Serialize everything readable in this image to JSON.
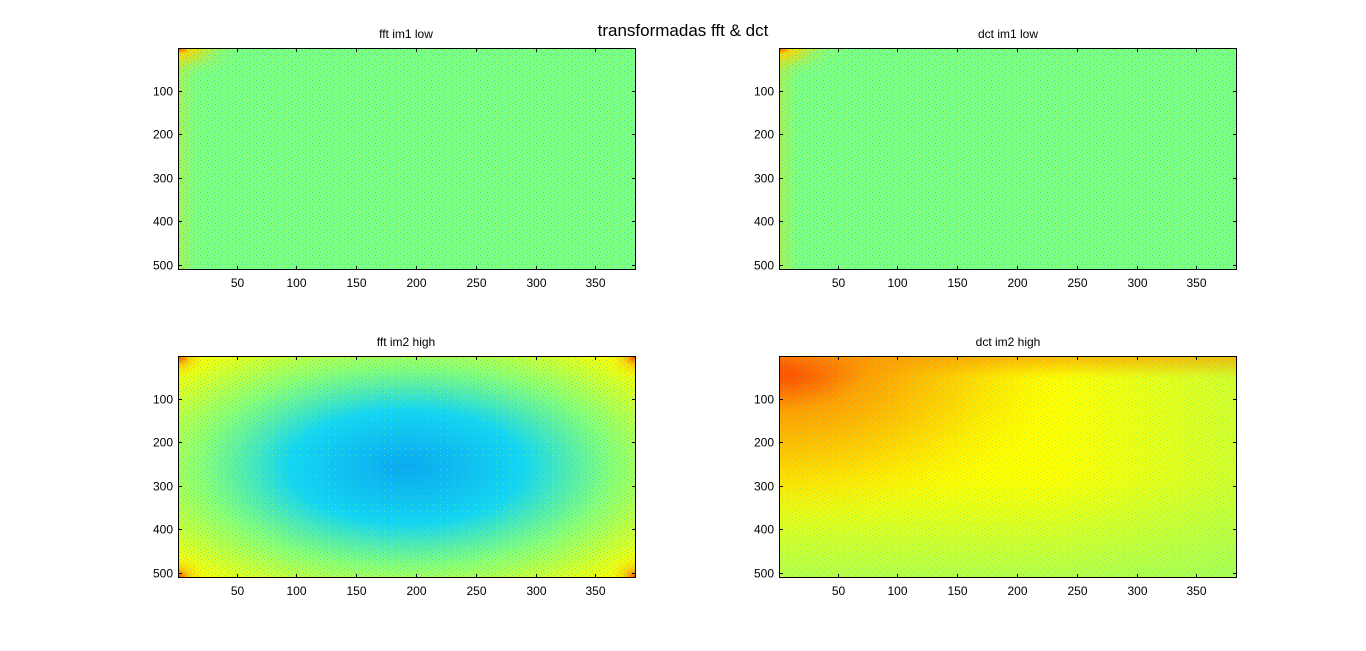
{
  "figure": {
    "suptitle": "transformadas fft & dct"
  },
  "chart_data": [
    {
      "type": "heatmap",
      "title": "fft im1 low",
      "xlim": [
        1,
        384
      ],
      "ylim": [
        1,
        512
      ],
      "y_reversed": true,
      "xticks": [
        50,
        100,
        150,
        200,
        250,
        300,
        350
      ],
      "yticks": [
        100,
        200,
        300,
        400,
        500
      ],
      "colormap": "jet",
      "pattern": "corner-peak-top-left",
      "colors": {
        "background": "#7dff80",
        "speckle": "#00c8ff",
        "peak": "#e60000",
        "halo": "#ffd800"
      }
    },
    {
      "type": "heatmap",
      "title": "dct im1 low",
      "xlim": [
        1,
        384
      ],
      "ylim": [
        1,
        512
      ],
      "y_reversed": true,
      "xticks": [
        50,
        100,
        150,
        200,
        250,
        300,
        350
      ],
      "yticks": [
        100,
        200,
        300,
        400,
        500
      ],
      "colormap": "jet",
      "pattern": "corner-peak-top-left",
      "colors": {
        "background": "#7dff80",
        "speckle": "#00c8ff",
        "peak": "#e60000",
        "halo": "#ffd800"
      }
    },
    {
      "type": "heatmap",
      "title": "fft im2 high",
      "xlim": [
        1,
        384
      ],
      "ylim": [
        1,
        512
      ],
      "y_reversed": true,
      "xticks": [
        50,
        100,
        150,
        200,
        250,
        300,
        350
      ],
      "yticks": [
        100,
        200,
        300,
        400,
        500
      ],
      "colormap": "jet",
      "pattern": "four-corner-peaks-cyan-center",
      "colors": {
        "center": "#14d6f2",
        "mid": "#7dff80",
        "edge": "#ffff00",
        "corner": "#ff3000"
      }
    },
    {
      "type": "heatmap",
      "title": "dct im2 high",
      "xlim": [
        1,
        384
      ],
      "ylim": [
        1,
        512
      ],
      "y_reversed": true,
      "xticks": [
        50,
        100,
        150,
        200,
        250,
        300,
        350
      ],
      "yticks": [
        100,
        200,
        300,
        400,
        500
      ],
      "colormap": "jet",
      "pattern": "gradient-from-top-left",
      "colors": {
        "peak": "#ff2000",
        "orange": "#ff9a00",
        "yellow": "#ffff00",
        "green": "#9aff60"
      }
    }
  ]
}
